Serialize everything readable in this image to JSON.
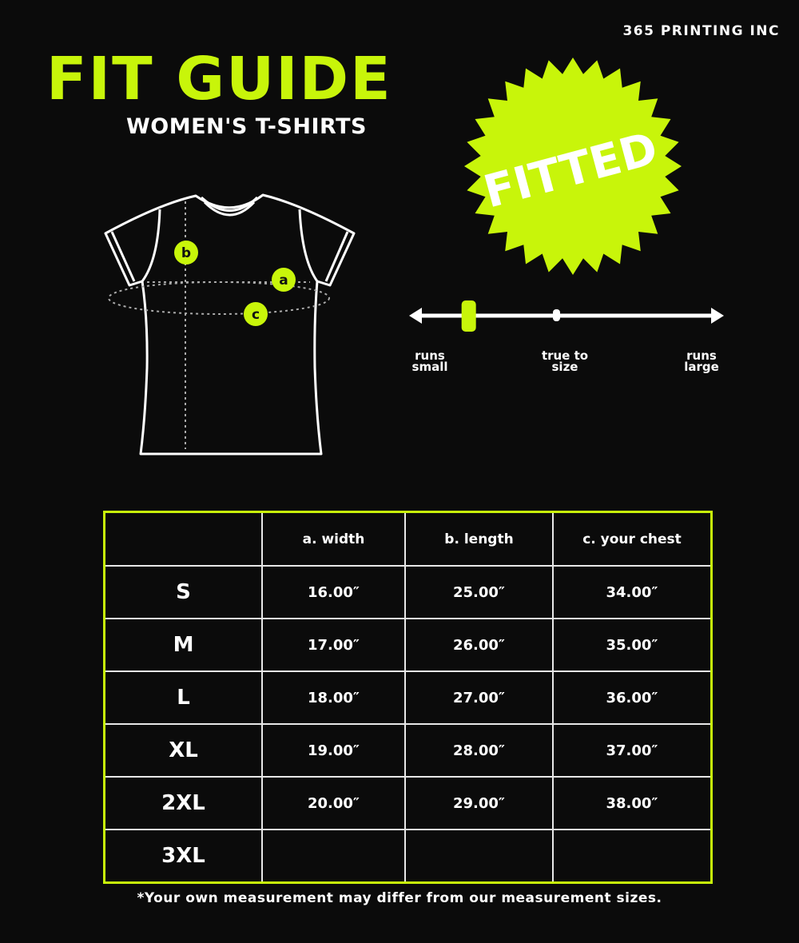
{
  "brand": "365 PRINTING INC",
  "title": "FIT GUIDE",
  "subtitle": "WOMEN'S T-SHIRTS",
  "badge": "FITTED",
  "accent": "#c8f50a",
  "diagram_markers": [
    "a",
    "b",
    "c"
  ],
  "fit_scale": {
    "labels": [
      "runs small",
      "true to size",
      "runs large"
    ],
    "fit_level": 0.19
  },
  "table": {
    "headers": [
      "",
      "a. width",
      "b. length",
      "c. your chest"
    ],
    "rows": [
      [
        "S",
        "16.00″",
        "25.00″",
        "34.00″"
      ],
      [
        "M",
        "17.00″",
        "26.00″",
        "35.00″"
      ],
      [
        "L",
        "18.00″",
        "27.00″",
        "36.00″"
      ],
      [
        "XL",
        "19.00″",
        "28.00″",
        "37.00″"
      ],
      [
        "2XL",
        "20.00″",
        "29.00″",
        "38.00″"
      ],
      [
        "3XL",
        "",
        "",
        ""
      ]
    ]
  },
  "note": "*Your own measurement may differ from our measurement sizes."
}
